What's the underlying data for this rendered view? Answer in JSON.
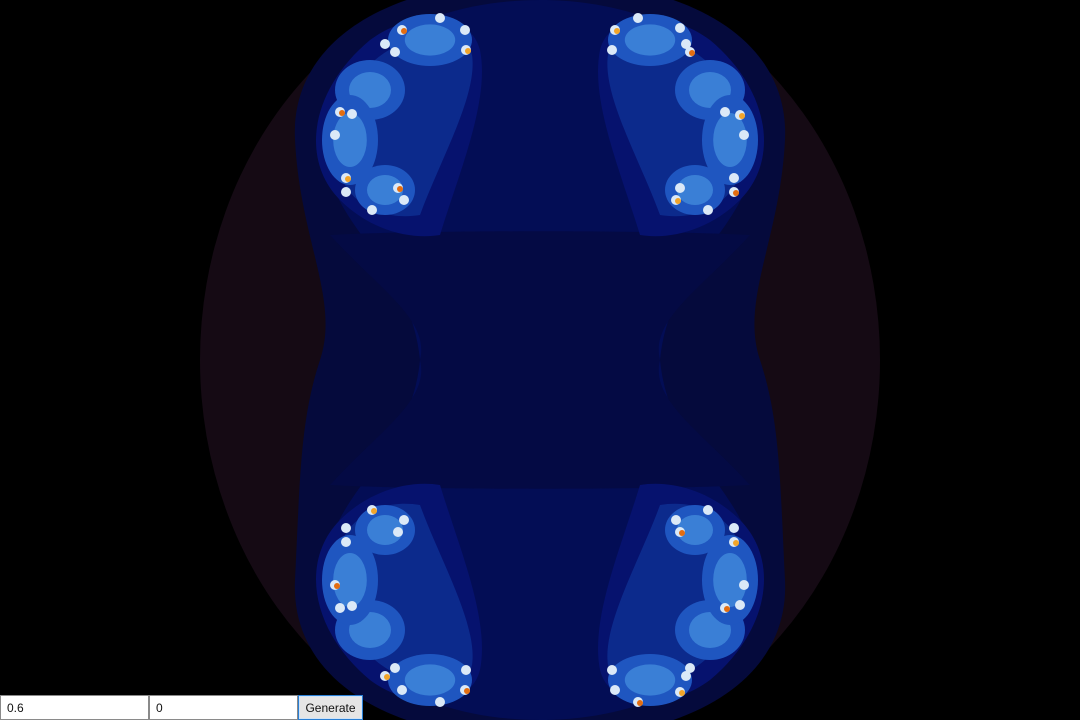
{
  "fractal": {
    "background_color": "#000000",
    "palette": [
      "#150a14",
      "#050a3c",
      "#030d55",
      "#06126e",
      "#0c2a8c",
      "#1f56c0",
      "#3a7fd6",
      "#7fb2ea",
      "#dbe9f7",
      "#f1a52a",
      "#e36d10"
    ]
  },
  "controls": {
    "real_value": "0.6",
    "imag_value": "0",
    "generate_label": "Generate"
  }
}
